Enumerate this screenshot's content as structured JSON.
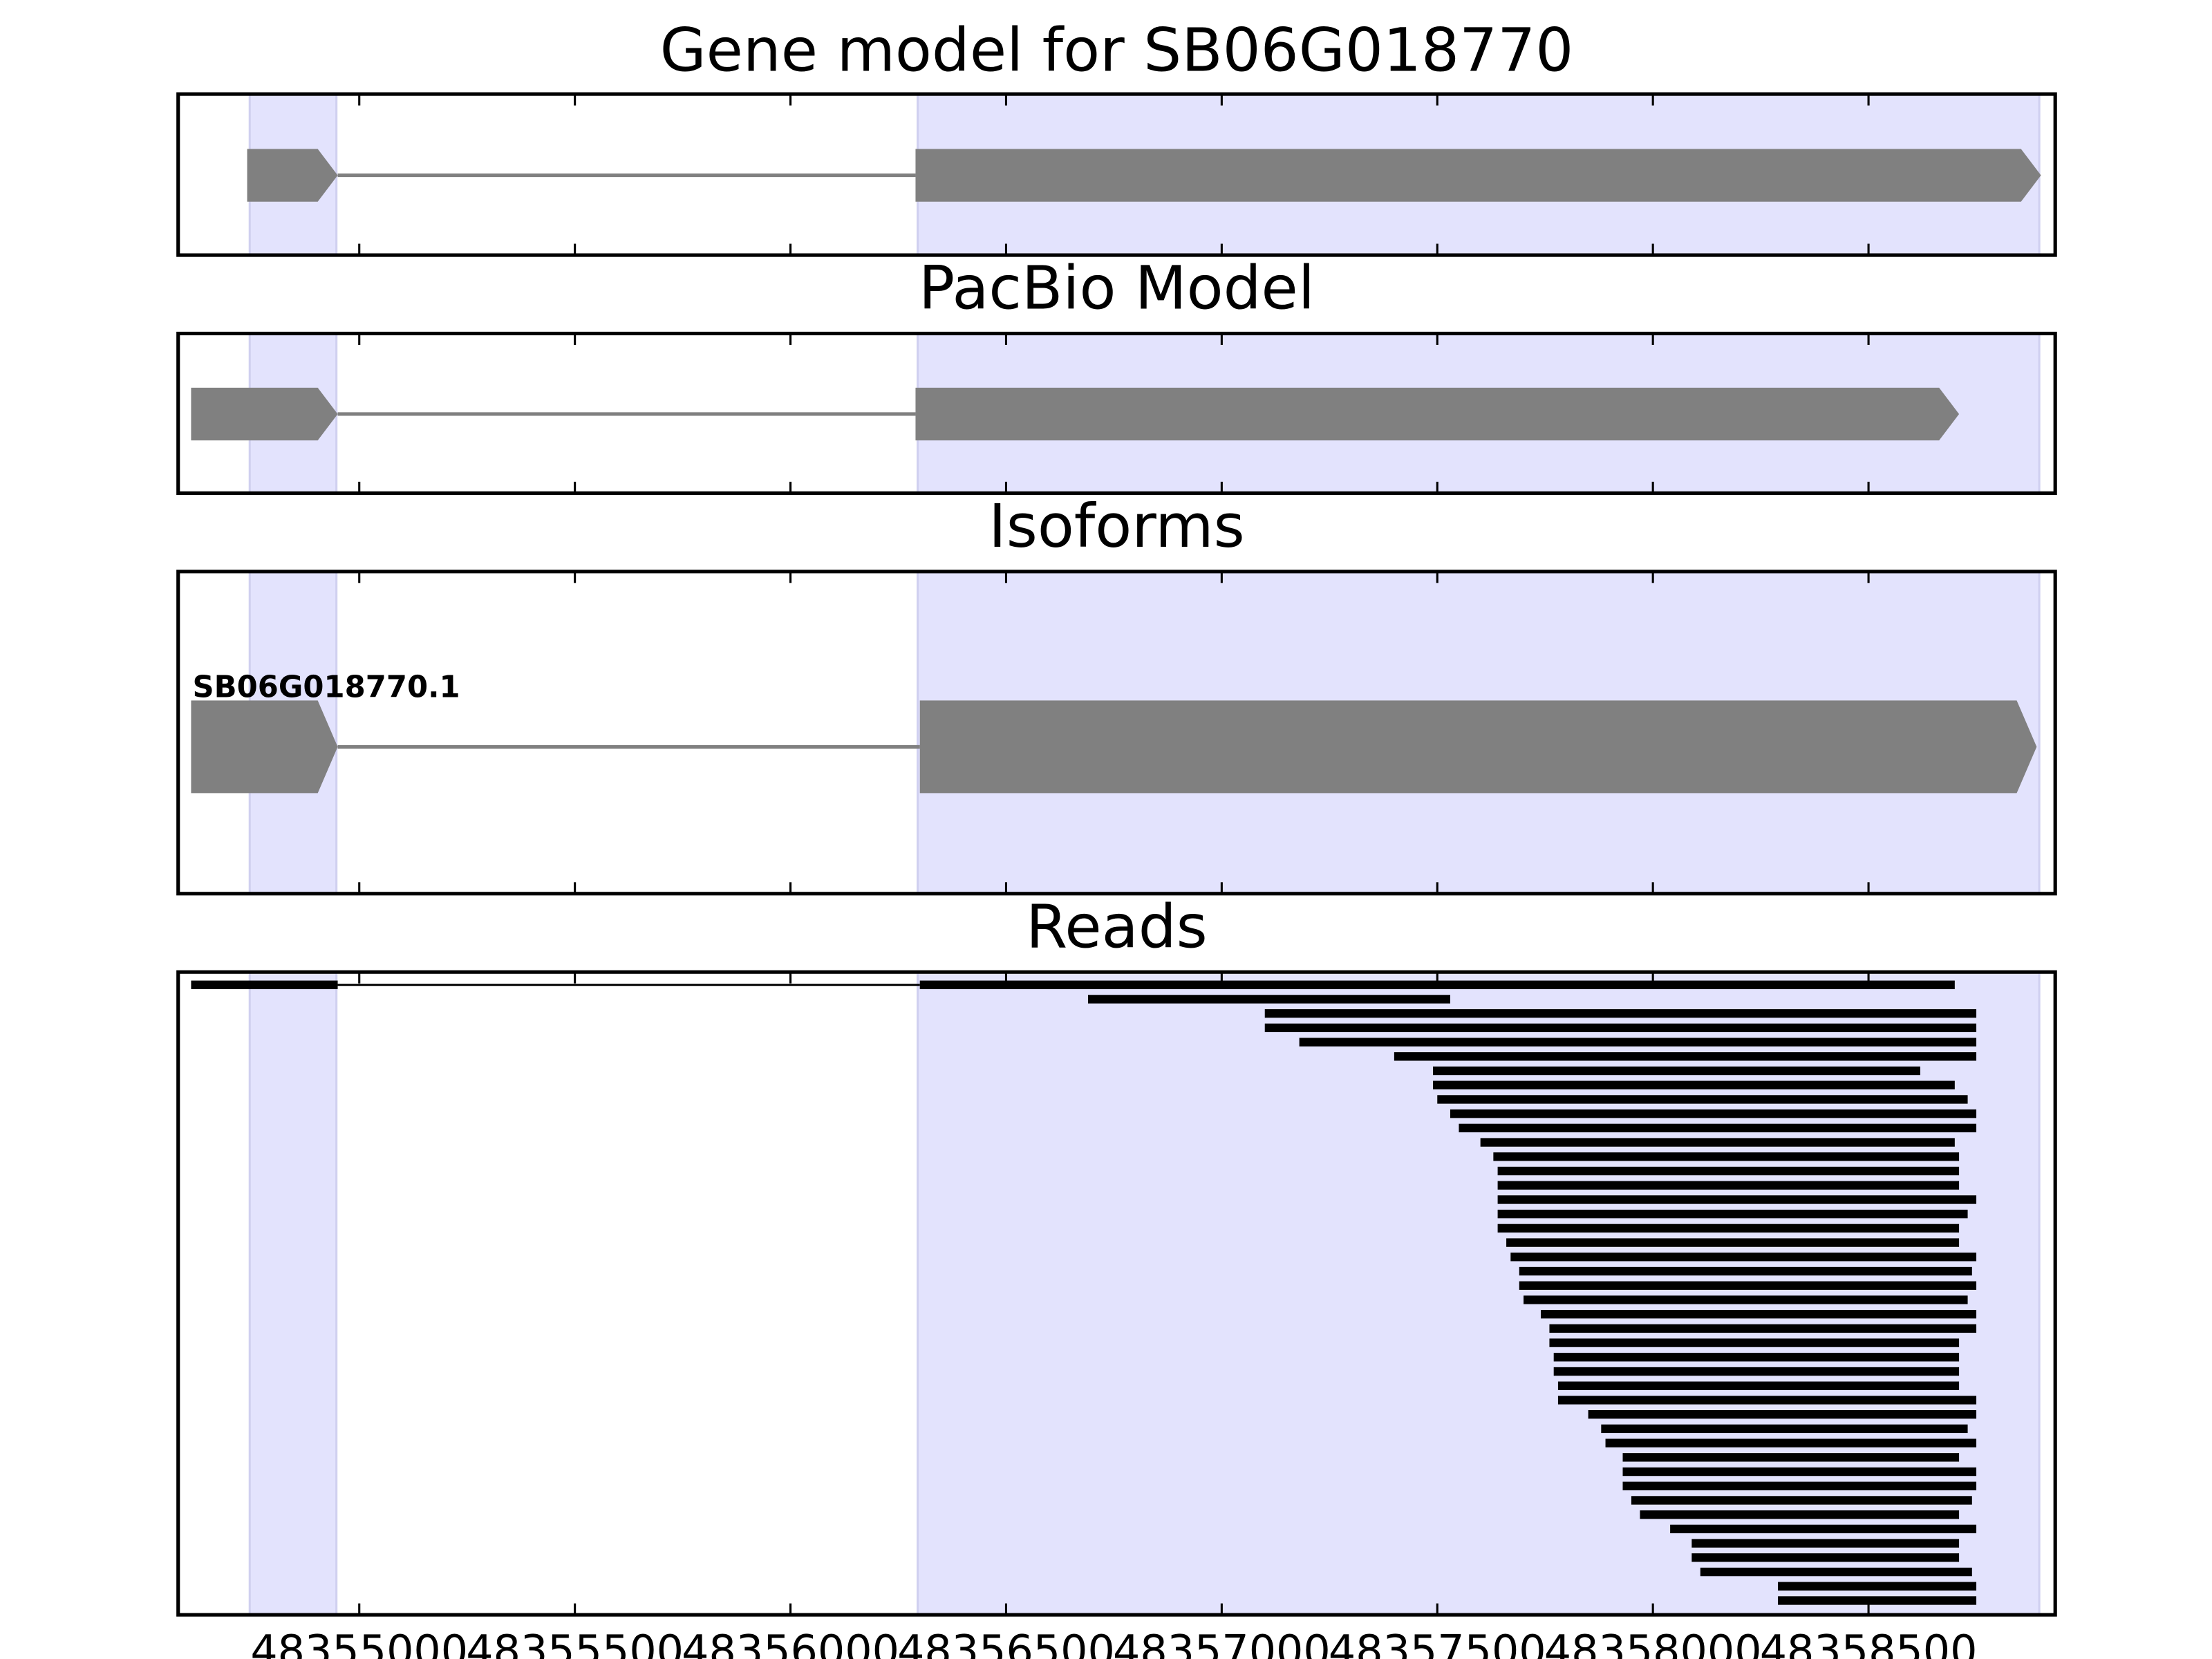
{
  "chart_data": [
    {
      "type": "gene-model",
      "title": "Gene model for SB06G018770",
      "xlim": [
        48354580,
        48358933
      ],
      "xticks": [
        48355000,
        48355500,
        48356000,
        48356500,
        48357000,
        48357500,
        48358000,
        48358500
      ],
      "highlights": [
        [
          48354746,
          48354947
        ],
        [
          48356295,
          48358896
        ]
      ],
      "highlight_color": "#e3e3fd",
      "color": "#808080",
      "models": [
        {
          "exons": [
            [
              48354740,
              48354950
            ],
            [
              48356290,
              48358900
            ]
          ]
        }
      ]
    },
    {
      "type": "gene-model",
      "title": "PacBio Model",
      "xlim": [
        48354580,
        48358933
      ],
      "xticks": [
        48355000,
        48355500,
        48356000,
        48356500,
        48357000,
        48357500,
        48358000,
        48358500
      ],
      "highlights": [
        [
          48354746,
          48354947
        ],
        [
          48356295,
          48358896
        ]
      ],
      "highlight_color": "#e3e3fd",
      "color": "#808080",
      "models": [
        {
          "exons": [
            [
              48354610,
              48354950
            ],
            [
              48356290,
              48358710
            ]
          ]
        }
      ]
    },
    {
      "type": "gene-model",
      "title": "Isoforms",
      "xlim": [
        48354580,
        48358933
      ],
      "xticks": [
        48355000,
        48355500,
        48356000,
        48356500,
        48357000,
        48357500,
        48358000,
        48358500
      ],
      "highlights": [
        [
          48354746,
          48354947
        ],
        [
          48356295,
          48358896
        ]
      ],
      "highlight_color": "#e3e3fd",
      "color": "#808080",
      "models": [
        {
          "name": "SB06G018770.1",
          "exons": [
            [
              48354610,
              48354950
            ],
            [
              48356300,
              48358890
            ]
          ]
        }
      ]
    },
    {
      "type": "reads",
      "title": "Reads",
      "xlim": [
        48354580,
        48358933
      ],
      "xticks": [
        48355000,
        48355500,
        48356000,
        48356500,
        48357000,
        48357500,
        48358000,
        48358500
      ],
      "highlights": [
        [
          48354746,
          48354947
        ],
        [
          48356295,
          48358896
        ]
      ],
      "highlight_color": "#e3e3fd",
      "color": "#000000",
      "reads": [
        [
          [
            48354610,
            48354950
          ],
          [
            48356300,
            48358700
          ]
        ],
        [
          [
            48356690,
            48357530
          ]
        ],
        [
          [
            48357100,
            48358750
          ]
        ],
        [
          [
            48357100,
            48358750
          ]
        ],
        [
          [
            48357180,
            48358750
          ]
        ],
        [
          [
            48357400,
            48358750
          ]
        ],
        [
          [
            48357490,
            48358620
          ]
        ],
        [
          [
            48357490,
            48358700
          ]
        ],
        [
          [
            48357500,
            48358730
          ]
        ],
        [
          [
            48357530,
            48358750
          ]
        ],
        [
          [
            48357550,
            48358750
          ]
        ],
        [
          [
            48357600,
            48358700
          ]
        ],
        [
          [
            48357630,
            48358710
          ]
        ],
        [
          [
            48357640,
            48358710
          ]
        ],
        [
          [
            48357640,
            48358710
          ]
        ],
        [
          [
            48357640,
            48358750
          ]
        ],
        [
          [
            48357640,
            48358730
          ]
        ],
        [
          [
            48357640,
            48358710
          ]
        ],
        [
          [
            48357660,
            48358710
          ]
        ],
        [
          [
            48357670,
            48358750
          ]
        ],
        [
          [
            48357690,
            48358740
          ]
        ],
        [
          [
            48357690,
            48358750
          ]
        ],
        [
          [
            48357700,
            48358730
          ]
        ],
        [
          [
            48357740,
            48358750
          ]
        ],
        [
          [
            48357760,
            48358750
          ]
        ],
        [
          [
            48357760,
            48358710
          ]
        ],
        [
          [
            48357770,
            48358710
          ]
        ],
        [
          [
            48357770,
            48358710
          ]
        ],
        [
          [
            48357780,
            48358710
          ]
        ],
        [
          [
            48357780,
            48358750
          ]
        ],
        [
          [
            48357850,
            48358750
          ]
        ],
        [
          [
            48357880,
            48358730
          ]
        ],
        [
          [
            48357890,
            48358750
          ]
        ],
        [
          [
            48357930,
            48358710
          ]
        ],
        [
          [
            48357930,
            48358750
          ]
        ],
        [
          [
            48357930,
            48358750
          ]
        ],
        [
          [
            48357950,
            48358740
          ]
        ],
        [
          [
            48357970,
            48358710
          ]
        ],
        [
          [
            48358040,
            48358750
          ]
        ],
        [
          [
            48358090,
            48358710
          ]
        ],
        [
          [
            48358090,
            48358710
          ]
        ],
        [
          [
            48358110,
            48358740
          ]
        ],
        [
          [
            48358290,
            48358750
          ]
        ],
        [
          [
            48358290,
            48358750
          ]
        ]
      ]
    }
  ]
}
